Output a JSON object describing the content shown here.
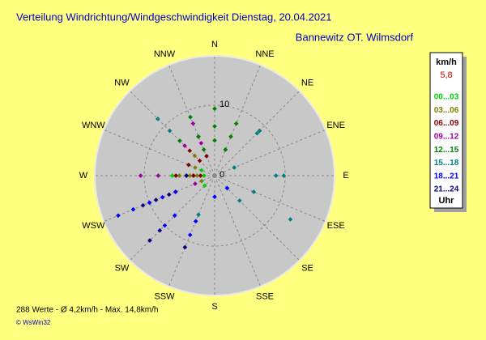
{
  "chart_data": {
    "type": "wind-rose",
    "title": "Verteilung Windrichtung/Windgeschwindigkeit  Dienstag, 20.04.2021",
    "subtitle": "Bannewitz OT. Wilmsdorf",
    "directions": [
      "N",
      "NNE",
      "NE",
      "ENE",
      "E",
      "ESE",
      "SE",
      "SSE",
      "S",
      "SSW",
      "SW",
      "WSW",
      "W",
      "WNW",
      "NW",
      "NNW"
    ],
    "rlim": [
      0,
      17
    ],
    "rticks": [
      0,
      10
    ],
    "unit_label": "km/h",
    "current_value": "5,8",
    "current_color": "#d00000",
    "time_label": "Uhr",
    "series": [
      {
        "name": "00...03",
        "color": "#00d000",
        "x": [
          270,
          270,
          270,
          247.5,
          270,
          292.5,
          225,
          270
        ],
        "values": [
          3,
          4,
          5,
          2,
          6,
          2,
          2,
          1.5
        ]
      },
      {
        "name": "03...06",
        "color": "#808000",
        "x": [
          270,
          270,
          292.5,
          270,
          315,
          247.5
        ],
        "values": [
          2.5,
          3.5,
          3,
          5,
          4,
          2
        ]
      },
      {
        "name": "06...09",
        "color": "#800000",
        "x": [
          270,
          270,
          270,
          292.5,
          315,
          315,
          337.5,
          270
        ],
        "values": [
          2,
          3,
          4,
          4,
          5,
          3,
          3,
          5.5
        ]
      },
      {
        "name": "09...12",
        "color": "#a000a0",
        "x": [
          337.5,
          337.5,
          337.5,
          270,
          270,
          247.5,
          315,
          22.5,
          247.5
        ],
        "values": [
          5,
          6,
          8,
          8,
          10.5,
          6,
          6,
          4,
          3
        ]
      },
      {
        "name": "12...15",
        "color": "#008000",
        "x": [
          0,
          0,
          0,
          337.5,
          337.5,
          22.5,
          22.5,
          22.5,
          45,
          315,
          337.5
        ],
        "values": [
          5,
          7,
          9.5,
          6,
          9,
          4,
          6,
          8,
          9,
          7,
          4
        ]
      },
      {
        "name": "15...18",
        "color": "#008080",
        "x": [
          45,
          45,
          90,
          90,
          112.5,
          120,
          315,
          315,
          202.5,
          135,
          67.5
        ],
        "values": [
          8.5,
          9,
          8.7,
          9.8,
          6,
          12.4,
          11.4,
          9,
          6,
          5,
          3
        ]
      },
      {
        "name": "18...21",
        "color": "#0000ff",
        "x": [
          247.5,
          247.5,
          247.5,
          247.5,
          247.5,
          225,
          225,
          202.5,
          202.5,
          135,
          180
        ],
        "values": [
          6,
          8,
          10,
          12.5,
          14.8,
          8,
          10,
          7,
          9.1,
          2.5,
          3
        ]
      },
      {
        "name": "21...24",
        "color": "#000080",
        "x": [
          247.5,
          247.5,
          247.5,
          225,
          225,
          202.5,
          270
        ],
        "values": [
          7,
          9,
          11,
          11,
          13,
          11,
          4
        ]
      }
    ]
  },
  "footer": {
    "stats": "288 Werte  -  Ø 4,2km/h  -  Max. 14,8km/h",
    "copyright": "© WsWin32"
  }
}
